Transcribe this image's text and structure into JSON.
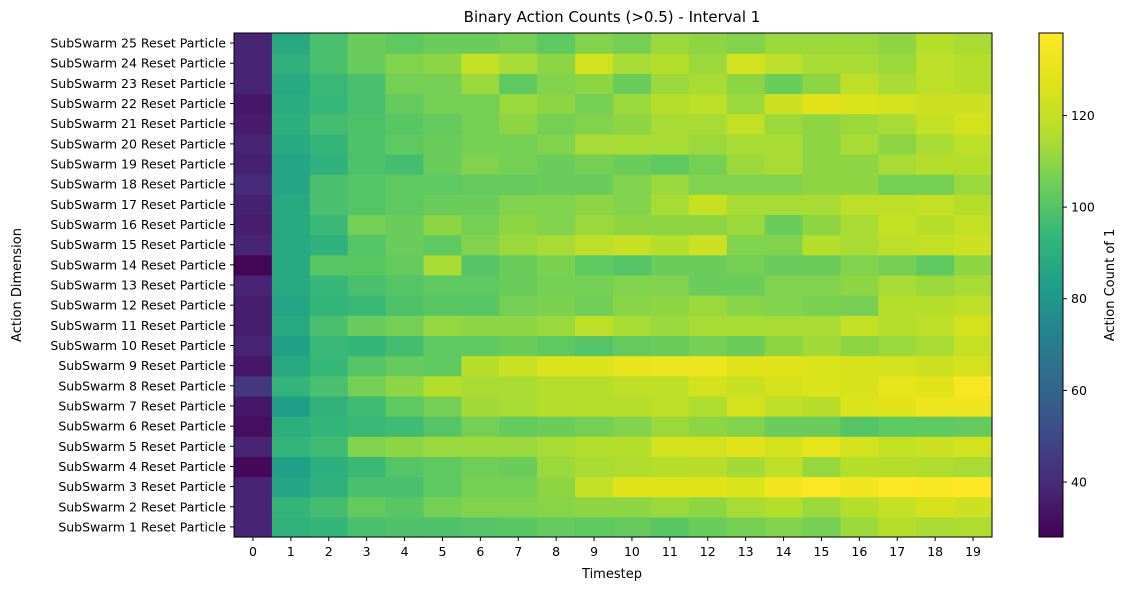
{
  "chart_data": {
    "type": "heatmap",
    "title": "Binary Action Counts (>0.5) - Interval 1",
    "xlabel": "Timestep",
    "ylabel": "Action Dimension",
    "colorbar_label": "Action Count of 1",
    "colormap": "viridis",
    "vmin": 28,
    "vmax": 138,
    "colorbar_ticks": [
      40,
      60,
      80,
      100,
      120
    ],
    "x": [
      0,
      1,
      2,
      3,
      4,
      5,
      6,
      7,
      8,
      9,
      10,
      11,
      12,
      13,
      14,
      15,
      16,
      17,
      18,
      19
    ],
    "y": [
      "SubSwarm 1 Reset Particle",
      "SubSwarm 2 Reset Particle",
      "SubSwarm 3 Reset Particle",
      "SubSwarm 4 Reset Particle",
      "SubSwarm 5 Reset Particle",
      "SubSwarm 6 Reset Particle",
      "SubSwarm 7 Reset Particle",
      "SubSwarm 8 Reset Particle",
      "SubSwarm 9 Reset Particle",
      "SubSwarm 10 Reset Particle",
      "SubSwarm 11 Reset Particle",
      "SubSwarm 12 Reset Particle",
      "SubSwarm 13 Reset Particle",
      "SubSwarm 14 Reset Particle",
      "SubSwarm 15 Reset Particle",
      "SubSwarm 16 Reset Particle",
      "SubSwarm 17 Reset Particle",
      "SubSwarm 18 Reset Particle",
      "SubSwarm 19 Reset Particle",
      "SubSwarm 20 Reset Particle",
      "SubSwarm 21 Reset Particle",
      "SubSwarm 22 Reset Particle",
      "SubSwarm 23 Reset Particle",
      "SubSwarm 24 Reset Particle",
      "SubSwarm 25 Reset Particle"
    ],
    "values": [
      [
        38,
        92,
        93,
        98,
        99,
        99,
        100,
        101,
        103,
        102,
        103,
        101,
        104,
        106,
        108,
        106,
        112,
        116,
        114,
        115
      ],
      [
        38,
        93,
        97,
        103,
        101,
        106,
        108,
        108,
        109,
        110,
        110,
        112,
        110,
        114,
        116,
        112,
        116,
        120,
        125,
        122
      ],
      [
        38,
        86,
        91,
        98,
        98,
        102,
        106,
        106,
        110,
        120,
        128,
        128,
        128,
        126,
        134,
        138,
        134,
        138,
        136,
        138
      ],
      [
        30,
        84,
        90,
        95,
        100,
        102,
        105,
        104,
        112,
        114,
        115,
        116,
        117,
        113,
        118,
        111,
        116,
        116,
        115,
        114
      ],
      [
        38,
        93,
        96,
        108,
        110,
        112,
        112,
        112,
        114,
        116,
        116,
        124,
        124,
        128,
        124,
        130,
        124,
        120,
        122,
        124
      ],
      [
        32,
        90,
        93,
        95,
        96,
        100,
        106,
        103,
        104,
        106,
        108,
        112,
        110,
        108,
        104,
        104,
        100,
        102,
        102,
        103
      ],
      [
        34,
        83,
        92,
        96,
        102,
        106,
        113,
        114,
        116,
        116,
        116,
        118,
        115,
        124,
        118,
        117,
        126,
        128,
        132,
        133
      ],
      [
        44,
        93,
        98,
        106,
        110,
        116,
        114,
        114,
        116,
        116,
        118,
        118,
        124,
        121,
        124,
        126,
        125,
        130,
        128,
        136
      ],
      [
        34,
        88,
        94,
        100,
        103,
        102,
        117,
        122,
        126,
        126,
        131,
        132,
        132,
        128,
        128,
        126,
        125,
        124,
        122,
        124
      ],
      [
        38,
        84,
        95,
        93,
        97,
        102,
        102,
        104,
        102,
        100,
        103,
        104,
        106,
        104,
        110,
        113,
        110,
        112,
        114,
        120
      ],
      [
        36,
        88,
        98,
        104,
        106,
        111,
        110,
        110,
        112,
        118,
        114,
        112,
        114,
        114,
        114,
        114,
        120,
        116,
        118,
        124
      ],
      [
        36,
        86,
        93,
        95,
        99,
        101,
        101,
        106,
        107,
        105,
        109,
        110,
        112,
        109,
        108,
        107,
        106,
        116,
        116,
        118
      ],
      [
        38,
        88,
        94,
        98,
        100,
        102,
        102,
        104,
        106,
        106,
        108,
        108,
        104,
        104,
        108,
        108,
        110,
        114,
        112,
        114
      ],
      [
        29,
        88,
        101,
        101,
        103,
        114,
        100,
        104,
        107,
        102,
        100,
        104,
        104,
        106,
        104,
        104,
        108,
        106,
        102,
        110
      ],
      [
        38,
        88,
        91,
        100,
        104,
        102,
        108,
        112,
        114,
        118,
        121,
        116,
        122,
        108,
        108,
        116,
        114,
        118,
        120,
        122
      ],
      [
        36,
        88,
        95,
        106,
        104,
        110,
        106,
        110,
        108,
        112,
        110,
        110,
        110,
        112,
        104,
        110,
        114,
        120,
        116,
        120
      ],
      [
        37,
        88,
        98,
        100,
        102,
        104,
        104,
        108,
        108,
        110,
        108,
        114,
        121,
        114,
        114,
        114,
        118,
        118,
        120,
        116
      ],
      [
        40,
        86,
        98,
        100,
        102,
        102,
        103,
        103,
        104,
        104,
        108,
        112,
        108,
        108,
        108,
        110,
        110,
        106,
        106,
        112
      ],
      [
        37,
        86,
        91,
        99,
        97,
        104,
        108,
        106,
        104,
        106,
        104,
        102,
        106,
        112,
        114,
        110,
        110,
        114,
        116,
        116
      ],
      [
        38,
        88,
        93,
        99,
        102,
        104,
        106,
        106,
        108,
        114,
        114,
        114,
        112,
        114,
        114,
        110,
        114,
        110,
        114,
        118
      ],
      [
        35,
        90,
        97,
        99,
        101,
        103,
        106,
        110,
        106,
        108,
        110,
        114,
        114,
        120,
        112,
        110,
        112,
        114,
        120,
        124
      ],
      [
        34,
        89,
        94,
        98,
        103,
        106,
        106,
        112,
        110,
        106,
        112,
        116,
        118,
        112,
        122,
        128,
        126,
        124,
        122,
        122
      ],
      [
        38,
        88,
        95,
        98,
        106,
        106,
        112,
        102,
        108,
        110,
        104,
        112,
        114,
        110,
        104,
        110,
        118,
        114,
        118,
        116
      ],
      [
        38,
        91,
        98,
        104,
        108,
        110,
        120,
        114,
        110,
        124,
        114,
        116,
        112,
        124,
        118,
        114,
        114,
        112,
        118,
        116
      ],
      [
        38,
        88,
        98,
        104,
        102,
        104,
        104,
        106,
        102,
        108,
        106,
        112,
        110,
        108,
        112,
        112,
        112,
        110,
        116,
        114
      ]
    ]
  }
}
